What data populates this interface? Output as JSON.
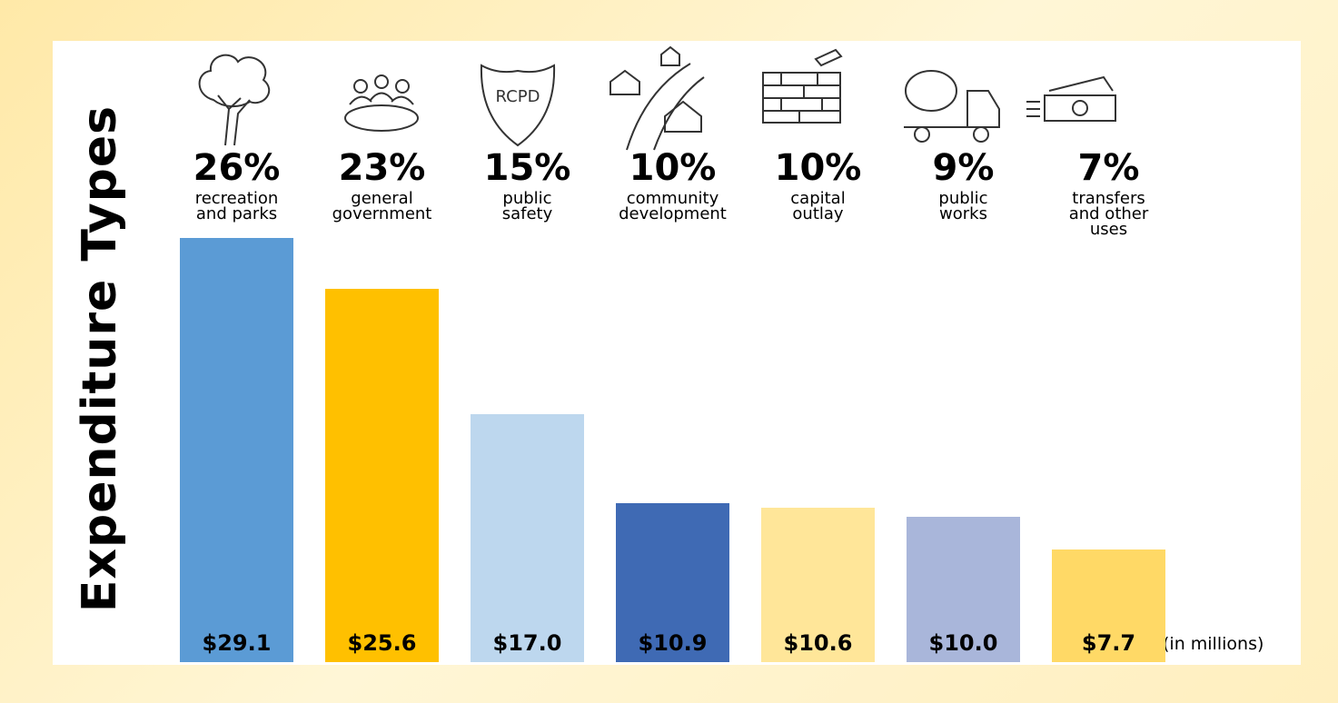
{
  "chart_data": {
    "type": "bar",
    "title": "Expenditure Types",
    "categories": [
      "recreation\nand parks",
      "general\ngovernment",
      "public\nsafety",
      "community\ndevelopment",
      "capital\noutlay",
      "public\nworks",
      "transfers\nand other\nuses"
    ],
    "values": [
      29.1,
      25.6,
      17.0,
      10.9,
      10.6,
      10.0,
      7.7
    ],
    "value_labels": [
      "$29.1",
      "$25.6",
      "$17.0",
      "$10.9",
      "$10.6",
      "$10.0",
      "$7.7"
    ],
    "shares": {
      "values": [
        26,
        23,
        15,
        10,
        10,
        9,
        7
      ],
      "value_labels": [
        "26%",
        "23%",
        "15%",
        "10%",
        "10%",
        "9%",
        "7%"
      ]
    },
    "colors": [
      "#5b9bd5",
      "#ffc000",
      "#bdd7ee",
      "#3f6ab4",
      "#ffe699",
      "#a9b6da",
      "#ffd966"
    ],
    "unit_note": "(in millions)"
  }
}
